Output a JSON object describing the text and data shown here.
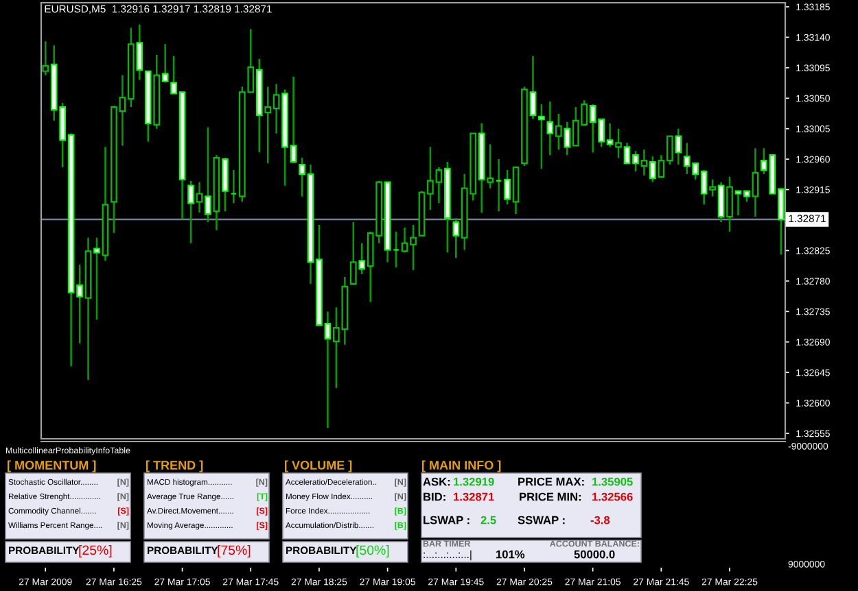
{
  "chart_data": [
    {
      "type": "candlestick",
      "annotations": [
        "EURUSD,M5  1.32916 1.32917 1.32819 1.32871"
      ],
      "categories": [
        null,
        null,
        null,
        null,
        null,
        null,
        null,
        null,
        null,
        null,
        null,
        null,
        null,
        null,
        null,
        null,
        null,
        null,
        null,
        null,
        null,
        null,
        null,
        null,
        null,
        null,
        null,
        null,
        null,
        null,
        null,
        null,
        null,
        null,
        null,
        null,
        null,
        null,
        null,
        null,
        null,
        null,
        null,
        null,
        null,
        null,
        null,
        null,
        null,
        null,
        null,
        null,
        null,
        null,
        null,
        null,
        null,
        null,
        null,
        null,
        null,
        null,
        null,
        null,
        null,
        null,
        null,
        null,
        null,
        null,
        null,
        null,
        null,
        null,
        null,
        null,
        null,
        null,
        null,
        null,
        null,
        null,
        null,
        null,
        null,
        null,
        null
      ],
      "ohlc": [
        [
          1.3309,
          1.33134,
          1.33084,
          1.33098
        ],
        [
          1.331,
          1.33128,
          1.33017,
          1.33033
        ],
        [
          1.33037,
          1.33043,
          1.32948,
          1.32988
        ],
        [
          1.32996,
          1.32998,
          1.32654,
          1.32763
        ],
        [
          1.32774,
          1.32804,
          1.32688,
          1.32757
        ],
        [
          1.32755,
          1.32844,
          1.32634,
          1.32824
        ],
        [
          1.32828,
          1.32844,
          1.32723,
          1.32822
        ],
        [
          1.32818,
          1.32978,
          1.3281,
          1.32893
        ],
        [
          1.32897,
          1.33039,
          1.32851,
          1.33037
        ],
        [
          1.33031,
          1.33084,
          1.3298,
          1.33051
        ],
        [
          1.33049,
          1.33154,
          1.33037,
          1.3313
        ],
        [
          1.33132,
          1.33159,
          1.33077,
          1.33092
        ],
        [
          1.3309,
          1.3309,
          1.32986,
          1.33013
        ],
        [
          1.33011,
          1.33114,
          1.33005,
          1.33084
        ],
        [
          1.33086,
          1.3313,
          1.33073,
          1.33075
        ],
        [
          1.33073,
          1.33112,
          1.33057,
          1.33057
        ],
        [
          1.33059,
          1.33059,
          1.32871,
          1.3293
        ],
        [
          1.32921,
          1.32928,
          1.32836,
          1.32895
        ],
        [
          1.32897,
          1.32926,
          1.32881,
          1.32909
        ],
        [
          1.32905,
          1.33007,
          1.32867,
          1.32879
        ],
        [
          1.32883,
          1.32966,
          1.32855,
          1.32962
        ],
        [
          1.3296,
          1.32962,
          1.32883,
          1.32913
        ],
        [
          1.32909,
          1.32944,
          1.32895,
          1.32909
        ],
        [
          1.32905,
          1.33067,
          1.32897,
          1.33059
        ],
        [
          1.33059,
          1.33152,
          1.33059,
          1.33096
        ],
        [
          1.33092,
          1.33108,
          1.3297,
          1.33025
        ],
        [
          1.33029,
          1.33067,
          1.32954,
          1.33037
        ],
        [
          1.33035,
          1.33071,
          1.32998,
          1.33055
        ],
        [
          1.33057,
          1.33063,
          1.32921,
          1.32978
        ],
        [
          1.3298,
          1.33082,
          1.32954,
          1.32956
        ],
        [
          1.32952,
          1.32962,
          1.32905,
          1.32938
        ],
        [
          1.32938,
          1.32952,
          1.32776,
          1.32808
        ],
        [
          1.32812,
          1.32863,
          1.32715,
          1.32715
        ],
        [
          1.32717,
          1.32735,
          1.32563,
          1.32695
        ],
        [
          1.32691,
          1.32741,
          1.32622,
          1.32711
        ],
        [
          1.32709,
          1.32786,
          1.32686,
          1.32772
        ],
        [
          1.32776,
          1.32867,
          1.32774,
          1.32808
        ],
        [
          1.3281,
          1.32836,
          1.3279,
          1.32798
        ],
        [
          1.32802,
          1.32853,
          1.32749,
          1.32851
        ],
        [
          1.32847,
          1.32928,
          1.32836,
          1.32926
        ],
        [
          1.32926,
          1.32926,
          1.32808,
          1.32826
        ],
        [
          1.32826,
          1.32853,
          1.328,
          1.32826
        ],
        [
          1.32824,
          1.32859,
          1.32822,
          1.32836
        ],
        [
          1.32834,
          1.32863,
          1.32796,
          1.32844
        ],
        [
          1.32847,
          1.32913,
          1.32847,
          1.32911
        ],
        [
          1.32909,
          1.32978,
          1.32885,
          1.32928
        ],
        [
          1.32926,
          1.32948,
          1.32895,
          1.32944
        ],
        [
          1.32946,
          1.32956,
          1.32822,
          1.32873
        ],
        [
          1.32867,
          1.32873,
          1.32814,
          1.32847
        ],
        [
          1.32844,
          1.32938,
          1.32826,
          1.32917
        ],
        [
          1.32909,
          1.32998,
          1.32899,
          1.32998
        ],
        [
          1.32998,
          1.33013,
          1.32881,
          1.3293
        ],
        [
          1.32926,
          1.32982,
          1.32917,
          1.32932
        ],
        [
          1.32928,
          1.3296,
          1.32883,
          1.32928
        ],
        [
          1.3293,
          1.32944,
          1.32893,
          1.32901
        ],
        [
          1.32897,
          1.32948,
          1.32879,
          1.32948
        ],
        [
          1.32954,
          1.33067,
          1.3295,
          1.33063
        ],
        [
          1.33059,
          1.33112,
          1.33019,
          1.33025
        ],
        [
          1.33023,
          1.33041,
          1.32946,
          1.33019
        ],
        [
          1.33015,
          1.33045,
          1.32966,
          1.32998
        ],
        [
          1.32994,
          1.33027,
          1.32974,
          1.33009
        ],
        [
          1.33005,
          1.33015,
          1.32966,
          1.32978
        ],
        [
          1.3298,
          1.33037,
          1.3298,
          1.33017
        ],
        [
          1.33011,
          1.33047,
          1.33009,
          1.33041
        ],
        [
          1.33039,
          1.33041,
          1.3297,
          1.33015
        ],
        [
          1.33019,
          1.33019,
          1.32978,
          1.32986
        ],
        [
          1.32988,
          1.33013,
          1.32978,
          1.32982
        ],
        [
          1.32978,
          1.33005,
          1.32962,
          1.32984
        ],
        [
          1.32978,
          1.32984,
          1.32954,
          1.32954
        ],
        [
          1.32966,
          1.32972,
          1.32942,
          1.32954
        ],
        [
          1.3295,
          1.32974,
          1.32936,
          1.32958
        ],
        [
          1.32956,
          1.32964,
          1.32926,
          1.32932
        ],
        [
          1.32934,
          1.32966,
          1.32932,
          1.32958
        ],
        [
          1.32958,
          1.32994,
          1.32952,
          1.32994
        ],
        [
          1.32994,
          1.33005,
          1.32952,
          1.3297
        ],
        [
          1.32964,
          1.32984,
          1.32938,
          1.3295
        ],
        [
          1.32954,
          1.32954,
          1.3293,
          1.32938
        ],
        [
          1.32942,
          1.32944,
          1.32893,
          1.32909
        ],
        [
          1.32915,
          1.3293,
          1.32905,
          1.32919
        ],
        [
          1.32921,
          1.32926,
          1.32867,
          1.32875
        ],
        [
          1.32875,
          1.32934,
          1.32853,
          1.32919
        ],
        [
          1.32913,
          1.32913,
          1.32877,
          1.32909
        ],
        [
          1.32913,
          1.32913,
          1.32897,
          1.32905
        ],
        [
          1.32905,
          1.32976,
          1.32875,
          1.3294
        ],
        [
          1.32958,
          1.32976,
          1.32938,
          1.32944
        ],
        [
          1.32966,
          1.32966,
          1.32909,
          1.32909
        ],
        [
          1.32916,
          1.32917,
          1.32819,
          1.32871
        ]
      ],
      "ylim": [
        1.32547,
        1.33191
      ],
      "yticks": [
        {
          "value": 1.33185,
          "label": "1.33185"
        },
        {
          "value": 1.3314,
          "label": "1.33140"
        },
        {
          "value": 1.33095,
          "label": "1.33095"
        },
        {
          "value": 1.3305,
          "label": "1.33050"
        },
        {
          "value": 1.33005,
          "label": "1.33005"
        },
        {
          "value": 1.3296,
          "label": "1.32960"
        },
        {
          "value": 1.32915,
          "label": "1.32915"
        },
        {
          "value": 1.32825,
          "label": "1.32825"
        },
        {
          "value": 1.3278,
          "label": "1.32780"
        },
        {
          "value": 1.32735,
          "label": "1.32735"
        },
        {
          "value": 1.3269,
          "label": "1.32690"
        },
        {
          "value": 1.32645,
          "label": "1.32645"
        },
        {
          "value": 1.326,
          "label": "1.32600"
        },
        {
          "value": 1.32555,
          "label": "1.32555"
        }
      ],
      "ref_lines": [
        {
          "axis": "y",
          "value": 1.32871,
          "label": "1.32871",
          "color": "#708090"
        }
      ],
      "tick_labels": "y"
    },
    {
      "type": "other",
      "categories": [
        "27 Mar 2009",
        null,
        null,
        null,
        null,
        null,
        null,
        null,
        "27 Mar 16:25",
        null,
        null,
        null,
        null,
        null,
        null,
        null,
        "27 Mar 17:05",
        null,
        null,
        null,
        null,
        null,
        null,
        null,
        "27 Mar 17:45",
        null,
        null,
        null,
        null,
        null,
        null,
        null,
        "27 Mar 18:25",
        null,
        null,
        null,
        null,
        null,
        null,
        null,
        "27 Mar 19:05",
        null,
        null,
        null,
        null,
        null,
        null,
        null,
        "27 Mar 19:45",
        null,
        null,
        null,
        null,
        null,
        null,
        null,
        "27 Mar 20:25",
        null,
        null,
        null,
        null,
        null,
        null,
        null,
        "27 Mar 21:05",
        null,
        null,
        null,
        null,
        null,
        null,
        null,
        "27 Mar 21:45",
        null,
        null,
        null,
        null,
        null,
        null,
        null,
        "27 Mar 22:25",
        null,
        null,
        null,
        null,
        null,
        null
      ],
      "annotations": [
        "MulticollinearProbabilityInfoTable",
        "[ MOMENTUM ]",
        "Stochastic Oscillator........",
        "[N]",
        "Relative Strenght..............",
        "[N]",
        "Commodity Channel.......",
        "[S]",
        "Williams Percent Range....",
        "[N]",
        "PROBABILITY",
        "[25%]",
        "[ TREND ]",
        "MACD histogram...........",
        "[N]",
        "Average True Range......",
        "[T]",
        "Av.Direct.Movement.......",
        "[S]",
        "Moving Average.............",
        "[S]",
        "PROBABILITY",
        "[75%]",
        "[ VOLUME ]",
        "Acceleratio/Deceleration..",
        "[N]",
        "Money Flow Index..........",
        "[N]",
        "Force Index...................",
        "[B]",
        "Accumulation/Distrib.......",
        "[B]",
        "PROBABILITY",
        "[50%]",
        "[ MAIN INFO ]",
        "ASK:",
        "1.32919",
        "PRICE MAX:",
        "1.35905",
        "BID:",
        "1.32871",
        "PRICE MIN:",
        "1.32566",
        "LSWAP :",
        "2.5",
        "SSWAP :",
        "-3.8",
        "BAR TIMER",
        ":...:...:...:...|",
        "101%",
        "ACCOUNT BALANCE:",
        "50000.0",
        "-9000000",
        "9000000"
      ]
    }
  ]
}
